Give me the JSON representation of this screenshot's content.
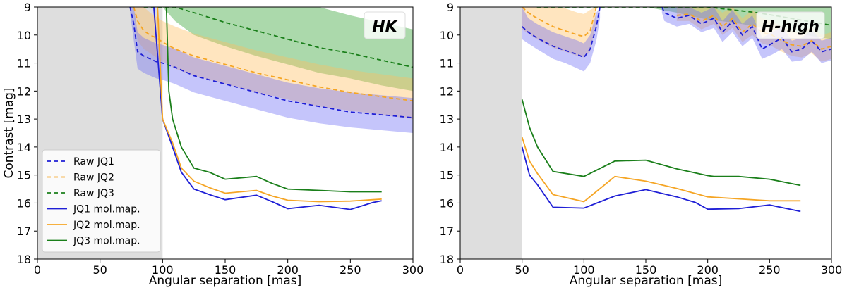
{
  "chart_data": [
    {
      "type": "line",
      "panel_label": "HK",
      "xlabel": "Angular separation [mas]",
      "ylabel": "Contrast [mag]",
      "xlim": [
        0,
        300
      ],
      "ylim": [
        18,
        9
      ],
      "yaxis_inverted": true,
      "xticks": [
        0,
        50,
        100,
        150,
        200,
        250,
        300
      ],
      "yticks": [
        9,
        10,
        11,
        12,
        13,
        14,
        15,
        16,
        17,
        18
      ],
      "shaded_region_x": [
        0,
        100
      ],
      "legend": {
        "placement": "lower-left",
        "entries": [
          "Raw JQ1",
          "Raw JQ2",
          "Raw JQ3",
          "JQ1 mol.map.",
          "JQ2 mol.map.",
          "JQ3 mol.map."
        ]
      },
      "series": [
        {
          "name": "Raw JQ3",
          "style": "dashed",
          "color": "#1a7f1a",
          "band_color": "#2ca02c",
          "x": [
            85,
            95,
            100,
            110,
            125,
            150,
            175,
            200,
            225,
            250,
            275,
            300
          ],
          "y": [
            9.0,
            9.0,
            9.0,
            9.0,
            9.2,
            9.55,
            9.85,
            10.15,
            10.45,
            10.65,
            10.9,
            11.15
          ],
          "band_low": [
            9.0,
            9.0,
            9.0,
            9.0,
            9.0,
            9.0,
            9.0,
            9.0,
            9.0,
            9.3,
            9.55,
            9.8
          ],
          "band_high": [
            9.0,
            9.0,
            9.0,
            9.5,
            10.0,
            10.4,
            10.75,
            11.05,
            11.35,
            11.55,
            11.8,
            12.0
          ]
        },
        {
          "name": "Raw JQ2",
          "style": "dashed",
          "color": "#f5a524",
          "band_color": "#ffbf60",
          "x": [
            77,
            80,
            85,
            90,
            95,
            100,
            110,
            125,
            150,
            175,
            200,
            225,
            250,
            275,
            300
          ],
          "y": [
            9.0,
            9.5,
            9.85,
            10.0,
            10.1,
            10.25,
            10.5,
            10.75,
            11.05,
            11.35,
            11.6,
            11.85,
            12.05,
            12.2,
            12.35
          ],
          "band_low": [
            9.0,
            9.0,
            9.0,
            9.2,
            9.35,
            9.5,
            9.7,
            9.95,
            10.25,
            10.55,
            10.8,
            11.05,
            11.25,
            11.4,
            11.55
          ],
          "band_high": [
            9.2,
            10.2,
            10.5,
            10.65,
            10.8,
            10.95,
            11.2,
            11.45,
            11.75,
            12.05,
            12.3,
            12.55,
            12.7,
            12.85,
            13.0
          ]
        },
        {
          "name": "Raw JQ1",
          "style": "dashed",
          "color": "#1f1fd6",
          "band_color": "#6f6ff5",
          "x": [
            74,
            77,
            80,
            85,
            90,
            95,
            100,
            110,
            125,
            150,
            175,
            200,
            225,
            250,
            275,
            300
          ],
          "y": [
            9.0,
            9.6,
            10.6,
            10.75,
            10.85,
            10.95,
            11.0,
            11.15,
            11.45,
            11.75,
            12.05,
            12.35,
            12.55,
            12.75,
            12.85,
            12.95
          ],
          "band_low": [
            9.0,
            9.0,
            9.9,
            10.1,
            10.2,
            10.3,
            10.35,
            10.5,
            10.8,
            11.1,
            11.4,
            11.7,
            11.9,
            12.05,
            12.15,
            12.25
          ],
          "band_high": [
            9.2,
            10.2,
            11.2,
            11.35,
            11.45,
            11.55,
            11.6,
            11.75,
            12.05,
            12.35,
            12.65,
            12.95,
            13.15,
            13.3,
            13.4,
            13.5
          ]
        },
        {
          "name": "JQ1 mol.map.",
          "style": "solid",
          "color": "#1f1fd6",
          "x": [
            93,
            100,
            108,
            115,
            125,
            137.5,
            150,
            175,
            187.5,
            200,
            225,
            250,
            268,
            275
          ],
          "y": [
            9.0,
            13.0,
            14.0,
            14.9,
            15.5,
            15.7,
            15.88,
            15.72,
            15.95,
            16.2,
            16.08,
            16.23,
            15.98,
            15.92
          ]
        },
        {
          "name": "JQ2 mol.map.",
          "style": "solid",
          "color": "#f5a524",
          "x": [
            96,
            100,
            108,
            115,
            125,
            137.5,
            150,
            175,
            187.5,
            200,
            225,
            250,
            268,
            275
          ],
          "y": [
            9.0,
            13.0,
            13.85,
            14.75,
            15.22,
            15.45,
            15.65,
            15.55,
            15.75,
            15.9,
            15.95,
            15.93,
            15.88,
            15.86
          ]
        },
        {
          "name": "JQ3 mol.map.",
          "style": "solid",
          "color": "#1a7f1a",
          "x": [
            103,
            105,
            108,
            115,
            125,
            137.5,
            150,
            175,
            187.5,
            200,
            225,
            250,
            268,
            275
          ],
          "y": [
            9.0,
            12.0,
            13.0,
            14.0,
            14.75,
            14.9,
            15.15,
            15.05,
            15.3,
            15.5,
            15.55,
            15.6,
            15.6,
            15.6
          ]
        }
      ]
    },
    {
      "type": "line",
      "panel_label": "H-high",
      "xlabel": "Angular separation [mas]",
      "ylabel": "",
      "xlim": [
        0,
        300
      ],
      "ylim": [
        18,
        9
      ],
      "yaxis_inverted": true,
      "xticks": [
        0,
        50,
        100,
        150,
        200,
        250,
        300
      ],
      "yticks": [
        9,
        10,
        11,
        12,
        13,
        14,
        15,
        16,
        17,
        18
      ],
      "shaded_region_x": [
        0,
        50
      ],
      "series": [
        {
          "name": "Raw JQ3",
          "style": "dashed",
          "color": "#1a7f1a",
          "band_color": "#2ca02c",
          "x": [
            62,
            75,
            100,
            125,
            150,
            175,
            200,
            220,
            240,
            260,
            280,
            300
          ],
          "y": [
            9.0,
            9.0,
            9.0,
            9.0,
            9.0,
            9.0,
            9.0,
            9.1,
            9.2,
            9.35,
            9.5,
            9.65
          ],
          "band_low": [
            9.0,
            9.0,
            9.0,
            9.0,
            9.0,
            9.0,
            9.0,
            9.0,
            9.0,
            9.0,
            9.0,
            9.0
          ],
          "band_high": [
            9.0,
            9.0,
            9.0,
            9.0,
            9.0,
            9.2,
            9.45,
            9.55,
            9.7,
            9.85,
            10.0,
            10.15
          ]
        },
        {
          "name": "Raw JQ2",
          "style": "dashed",
          "color": "#f5a524",
          "band_color": "#ffbf60",
          "x": [
            50,
            55,
            62,
            75,
            85,
            95,
            100,
            105,
            110
          ],
          "y": [
            9.0,
            9.2,
            9.4,
            9.7,
            9.85,
            10.0,
            10.05,
            9.85,
            9.0
          ],
          "band_low": [
            9.0,
            9.0,
            9.0,
            9.0,
            9.05,
            9.2,
            9.25,
            9.1,
            9.0
          ],
          "band_high": [
            9.8,
            9.95,
            10.15,
            10.45,
            10.6,
            10.75,
            10.8,
            10.6,
            9.5
          ]
        },
        {
          "name": "Raw JQ2 (outer)",
          "style": "dashed",
          "color": "#f5a524",
          "band_color": "#ffbf60",
          "x": [
            175,
            185,
            195,
            205,
            212,
            220,
            228,
            236,
            244,
            252,
            260,
            268,
            276,
            284,
            292,
            300
          ],
          "y": [
            9.3,
            9.25,
            9.5,
            9.3,
            9.7,
            9.4,
            9.9,
            9.6,
            9.9,
            10.0,
            10.2,
            10.35,
            10.4,
            10.2,
            10.5,
            10.4
          ],
          "band_low": [
            9.0,
            9.0,
            9.0,
            9.0,
            9.2,
            9.0,
            9.4,
            9.1,
            9.4,
            9.5,
            9.7,
            9.85,
            9.9,
            9.7,
            10.0,
            9.9
          ],
          "band_high": [
            9.5,
            9.5,
            9.8,
            9.6,
            10.0,
            9.75,
            10.25,
            10.0,
            10.3,
            10.4,
            10.6,
            10.75,
            10.8,
            10.65,
            10.95,
            10.85
          ]
        },
        {
          "name": "Raw JQ1",
          "style": "dashed",
          "color": "#1f1fd6",
          "band_color": "#6f6ff5",
          "x": [
            50,
            55,
            62,
            75,
            85,
            95,
            100,
            105,
            110,
            113
          ],
          "y": [
            9.7,
            9.9,
            10.1,
            10.4,
            10.55,
            10.7,
            10.8,
            10.5,
            9.7,
            9.0
          ],
          "band_low": [
            9.0,
            9.4,
            9.6,
            9.9,
            10.05,
            10.2,
            10.3,
            10.0,
            9.2,
            9.0
          ],
          "band_high": [
            10.15,
            10.3,
            10.5,
            10.85,
            11.0,
            11.2,
            11.3,
            11.0,
            10.2,
            9.4
          ]
        },
        {
          "name": "Raw JQ1 (outer)",
          "style": "dashed",
          "color": "#1f1fd6",
          "band_color": "#6f6ff5",
          "x": [
            163,
            165,
            175,
            185,
            195,
            205,
            212,
            220,
            228,
            236,
            244,
            252,
            260,
            268,
            276,
            284,
            292,
            300
          ],
          "y": [
            9.0,
            9.2,
            9.4,
            9.3,
            9.6,
            9.4,
            9.9,
            9.5,
            10.0,
            9.7,
            10.5,
            10.3,
            10.1,
            10.6,
            10.5,
            10.2,
            10.6,
            10.5
          ],
          "band_low": [
            9.0,
            9.0,
            9.0,
            9.0,
            9.2,
            9.0,
            9.5,
            9.1,
            9.6,
            9.3,
            10.1,
            9.9,
            9.7,
            10.2,
            10.1,
            9.8,
            10.2,
            10.1
          ],
          "band_high": [
            9.2,
            9.5,
            9.7,
            9.6,
            9.9,
            9.75,
            10.25,
            9.9,
            10.4,
            10.1,
            10.85,
            10.7,
            10.5,
            10.95,
            10.9,
            10.6,
            11.0,
            10.9
          ]
        },
        {
          "name": "JQ1 mol.map.",
          "style": "solid",
          "color": "#1f1fd6",
          "x": [
            50,
            56,
            62.5,
            75,
            100,
            125,
            150,
            175,
            190,
            200,
            225,
            250,
            275
          ],
          "y": [
            14.0,
            15.0,
            15.35,
            16.15,
            16.18,
            15.75,
            15.52,
            15.78,
            15.98,
            16.22,
            16.2,
            16.07,
            16.3
          ]
        },
        {
          "name": "JQ2 mol.map.",
          "style": "solid",
          "color": "#f5a524",
          "x": [
            50,
            56,
            62.5,
            75,
            100,
            125,
            150,
            175,
            200,
            225,
            250,
            275
          ],
          "y": [
            13.65,
            14.5,
            14.95,
            15.7,
            15.95,
            15.05,
            15.22,
            15.48,
            15.78,
            15.85,
            15.92,
            15.92
          ]
        },
        {
          "name": "JQ3 mol.map.",
          "style": "solid",
          "color": "#1a7f1a",
          "x": [
            50,
            56,
            62.5,
            75,
            100,
            125,
            150,
            175,
            200,
            205,
            225,
            250,
            275
          ],
          "y": [
            12.3,
            13.3,
            14.0,
            14.87,
            15.05,
            14.5,
            14.47,
            14.78,
            15.02,
            15.05,
            15.05,
            15.15,
            15.37
          ]
        }
      ]
    }
  ]
}
